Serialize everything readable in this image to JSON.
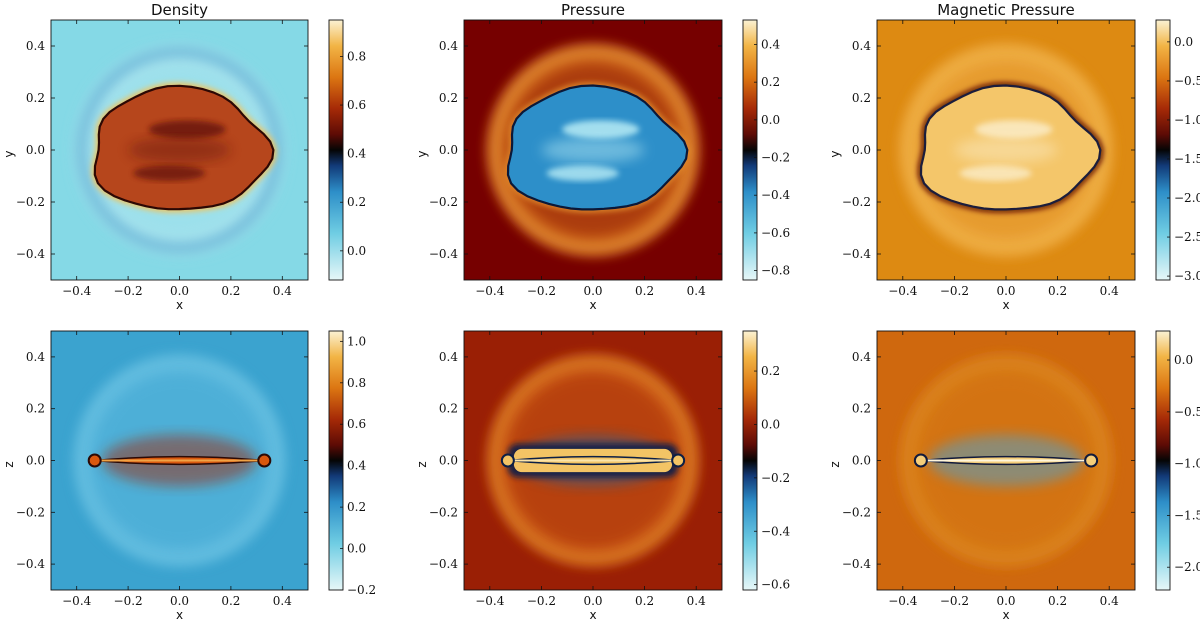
{
  "chart_data": [
    {
      "type": "heatmap",
      "title": "Density",
      "xlabel": "x",
      "ylabel": "y",
      "xlim": [
        -0.5,
        0.5
      ],
      "ylim": [
        -0.5,
        0.5
      ],
      "xticks": [
        "−0.4",
        "−0.2",
        "0.0",
        "0.2",
        "0.4"
      ],
      "yticks": [
        "0.4",
        "0.2",
        "0.0",
        "−0.2",
        "−0.4"
      ],
      "colorbar": {
        "range": [
          -0.12,
          0.95
        ],
        "ticks": [
          "0.8",
          "0.6",
          "0.4",
          "0.2",
          "0.0"
        ],
        "tick_values": [
          0.8,
          0.6,
          0.4,
          0.2,
          0.0
        ]
      },
      "colors": {
        "background": "#85d9e6",
        "shell": "#a9e4ee",
        "ring": "#3a93c6",
        "interior": "#b6461c",
        "interior_dark": "#6b1708",
        "edge": "#2c0804",
        "rim": "#f6c253"
      }
    },
    {
      "type": "heatmap",
      "title": "Pressure",
      "xlabel": "x",
      "ylabel": "y",
      "xlim": [
        -0.5,
        0.5
      ],
      "ylim": [
        -0.5,
        0.5
      ],
      "xticks": [
        "−0.4",
        "−0.2",
        "0.0",
        "0.2",
        "0.4"
      ],
      "yticks": [
        "0.4",
        "0.2",
        "0.0",
        "−0.2",
        "−0.4"
      ],
      "colorbar": {
        "range": [
          -0.85,
          0.53
        ],
        "ticks": [
          "0.4",
          "0.2",
          "0.0",
          "−0.2",
          "−0.4",
          "−0.6",
          "−0.8"
        ],
        "tick_values": [
          0.4,
          0.2,
          0.0,
          -0.2,
          -0.4,
          -0.6,
          -0.8
        ]
      },
      "colors": {
        "background": "#760000",
        "shell": "#c85d17",
        "ring": "#f6b14b",
        "interior": "#2d8fc9",
        "interior_light": "#b8ecf5",
        "edge": "#0b1838",
        "rim": "#e08a2a"
      }
    },
    {
      "type": "heatmap",
      "title": "Magnetic Pressure",
      "xlabel": "x",
      "ylabel": "y",
      "xlim": [
        -0.5,
        0.5
      ],
      "ylim": [
        -0.5,
        0.5
      ],
      "xticks": [
        "−0.4",
        "−0.2",
        "0.0",
        "0.2",
        "0.4"
      ],
      "yticks": [
        "0.4",
        "0.2",
        "0.0",
        "−0.2",
        "−0.4"
      ],
      "colorbar": {
        "range": [
          -3.05,
          0.28
        ],
        "ticks": [
          "0.0",
          "−0.5",
          "−1.0",
          "−1.5",
          "−2.0",
          "−2.5",
          "−3.0"
        ],
        "tick_values": [
          0.0,
          -0.5,
          -1.0,
          -1.5,
          -2.0,
          -2.5,
          -3.0
        ]
      },
      "colors": {
        "background": "#dd8a12",
        "shell": "#eba43a",
        "ring": "#f1b84c",
        "interior": "#f4c66a",
        "interior_light": "#fbecc7",
        "edge": "#1b1d3c",
        "rim": "#5a0a06"
      }
    },
    {
      "type": "heatmap",
      "title": "",
      "xlabel": "x",
      "ylabel": "z",
      "xlim": [
        -0.5,
        0.5
      ],
      "ylim": [
        -0.5,
        0.5
      ],
      "xticks": [
        "−0.4",
        "−0.2",
        "0.0",
        "0.2",
        "0.4"
      ],
      "yticks": [
        "0.4",
        "0.2",
        "0.0",
        "−0.2",
        "−0.4"
      ],
      "colorbar": {
        "range": [
          -0.2,
          1.05
        ],
        "ticks": [
          "1.0",
          "0.8",
          "0.6",
          "0.4",
          "0.2",
          "0.0",
          "−0.2"
        ],
        "tick_values": [
          1.0,
          0.8,
          0.6,
          0.4,
          0.2,
          0.0,
          -0.2
        ]
      },
      "colors": {
        "background": "#3ba3cf",
        "shell": "#58b6dc",
        "ring": "#6fc6e4",
        "interior": "#d9580f",
        "interior_light": "#f0a346",
        "edge": "#2b0a06",
        "rim": "#9e2a0b"
      }
    },
    {
      "type": "heatmap",
      "title": "",
      "xlabel": "x",
      "ylabel": "z",
      "xlim": [
        -0.5,
        0.5
      ],
      "ylim": [
        -0.5,
        0.5
      ],
      "xticks": [
        "−0.4",
        "−0.2",
        "0.0",
        "0.2",
        "0.4"
      ],
      "yticks": [
        "0.4",
        "0.2",
        "0.0",
        "−0.2",
        "−0.4"
      ],
      "colorbar": {
        "range": [
          -0.62,
          0.35
        ],
        "ticks": [
          "0.2",
          "0.0",
          "−0.2",
          "−0.4",
          "−0.6"
        ],
        "tick_values": [
          0.2,
          0.0,
          -0.2,
          -0.4,
          -0.6
        ]
      },
      "colors": {
        "background": "#9a1f05",
        "shell": "#c85712",
        "ring": "#e9992d",
        "interior": "#f3c465",
        "interior_light": "#fbe4aa",
        "edge": "#0c1f46",
        "rim": "#1d5d96"
      }
    },
    {
      "type": "heatmap",
      "title": "",
      "xlabel": "x",
      "ylabel": "z",
      "xlim": [
        -0.5,
        0.5
      ],
      "ylim": [
        -0.5,
        0.5
      ],
      "xticks": [
        "−0.4",
        "−0.2",
        "0.0",
        "0.2",
        "0.4"
      ],
      "yticks": [
        "0.4",
        "0.2",
        "0.0",
        "−0.2",
        "−0.4"
      ],
      "colorbar": {
        "range": [
          -2.22,
          0.28
        ],
        "ticks": [
          "0.0",
          "−0.5",
          "−1.0",
          "−1.5",
          "−2.0"
        ],
        "tick_values": [
          0.0,
          -0.5,
          -1.0,
          -1.5,
          -2.0
        ]
      },
      "colors": {
        "background": "#cf680e",
        "shell": "#d67a18",
        "ring": "#e08a25",
        "interior": "#f5ce7a",
        "interior_light": "#fff6dc",
        "edge": "#111a3c",
        "rim": "#4aa3d4"
      }
    }
  ]
}
